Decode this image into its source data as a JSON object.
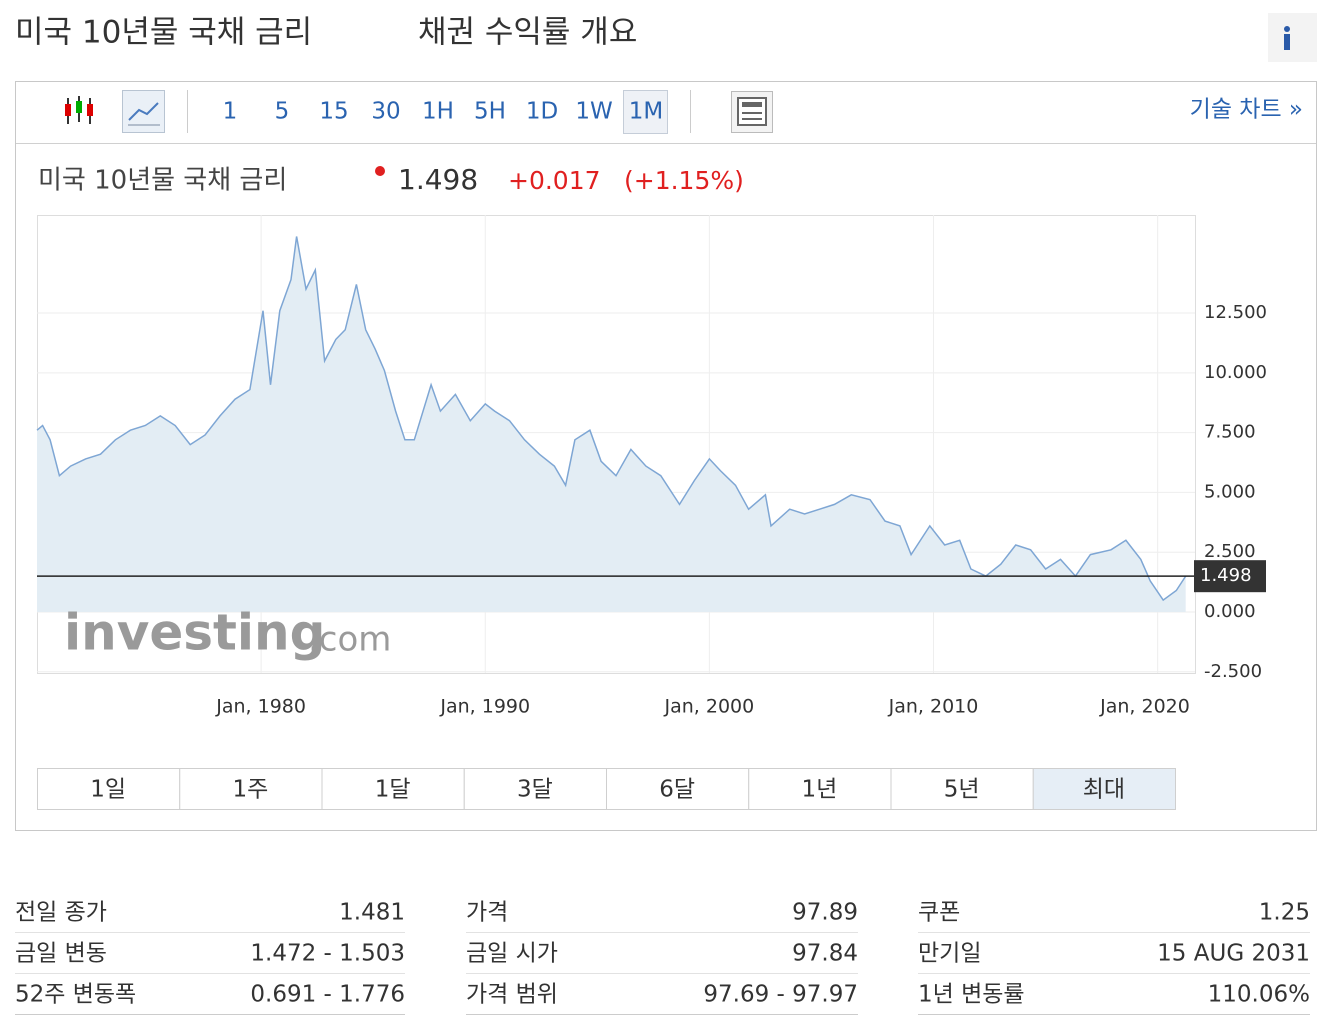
{
  "header": {
    "title": "미국 10년물 국채 금리",
    "subtitle": "채권 수익률 개요"
  },
  "toolbar": {
    "intervals": [
      {
        "label": "1"
      },
      {
        "label": "5"
      },
      {
        "label": "15"
      },
      {
        "label": "30"
      },
      {
        "label": "1H"
      },
      {
        "label": "5H"
      },
      {
        "label": "1D"
      },
      {
        "label": "1W"
      },
      {
        "label": "1M",
        "selected": true
      }
    ],
    "technical_link": "기술 차트 »"
  },
  "quote": {
    "name": "미국 10년물 국채 금리",
    "price": 1.498,
    "change": "+0.017",
    "change_percent": "(+1.15%)"
  },
  "watermark": {
    "brand": "investing",
    "suffix": ".com"
  },
  "chart_data": {
    "type": "line",
    "color": "#7ea6d4",
    "fill": "#e3edf4",
    "grid": true,
    "x": [
      "1970-01",
      "1970-04",
      "1970-08",
      "1971-01",
      "1971-07",
      "1972-03",
      "1972-11",
      "1973-07",
      "1974-03",
      "1974-11",
      "1975-07",
      "1976-03",
      "1976-11",
      "1977-07",
      "1978-03",
      "1978-11",
      "1979-07",
      "1980-02",
      "1980-06",
      "1980-11",
      "1981-05",
      "1981-08",
      "1982-01",
      "1982-06",
      "1982-11",
      "1983-05",
      "1983-10",
      "1984-04",
      "1984-09",
      "1985-02",
      "1985-07",
      "1986-01",
      "1986-06",
      "1986-11",
      "1987-08",
      "1988-01",
      "1988-09",
      "1989-05",
      "1990-01",
      "1990-06",
      "1991-02",
      "1991-10",
      "1992-06",
      "1993-02",
      "1993-08",
      "1994-01",
      "1994-09",
      "1995-03",
      "1995-11",
      "1996-07",
      "1997-03",
      "1997-11",
      "1998-09",
      "1999-05",
      "2000-01",
      "2000-07",
      "2001-03",
      "2001-10",
      "2002-07",
      "2002-10",
      "2003-08",
      "2004-04",
      "2004-12",
      "2005-08",
      "2006-05",
      "2007-03",
      "2007-11",
      "2008-07",
      "2009-01",
      "2009-11",
      "2010-07",
      "2011-03",
      "2011-09",
      "2012-05",
      "2013-01",
      "2013-09",
      "2014-05",
      "2015-01",
      "2015-09",
      "2016-05",
      "2017-01",
      "2017-12",
      "2018-08",
      "2019-04",
      "2019-09",
      "2020-04",
      "2020-11",
      "2021-04"
    ],
    "values": [
      7.6,
      7.8,
      7.2,
      5.7,
      6.1,
      6.4,
      6.6,
      7.2,
      7.6,
      7.8,
      8.2,
      7.8,
      7.0,
      7.4,
      8.2,
      8.9,
      9.3,
      12.6,
      9.5,
      12.6,
      13.9,
      15.7,
      13.5,
      14.3,
      10.5,
      11.4,
      11.8,
      13.7,
      11.8,
      11.0,
      10.1,
      8.4,
      7.2,
      7.2,
      9.5,
      8.4,
      9.1,
      8.0,
      8.7,
      8.4,
      8.0,
      7.2,
      6.6,
      6.1,
      5.3,
      7.2,
      7.6,
      6.3,
      5.7,
      6.8,
      6.1,
      5.7,
      4.5,
      5.5,
      6.4,
      5.9,
      5.3,
      4.3,
      4.9,
      3.6,
      4.3,
      4.1,
      4.3,
      4.5,
      4.9,
      4.7,
      3.8,
      3.6,
      2.4,
      3.6,
      2.8,
      3.0,
      1.8,
      1.5,
      2.0,
      2.8,
      2.6,
      1.8,
      2.2,
      1.5,
      2.4,
      2.6,
      3.0,
      2.2,
      1.3,
      0.5,
      0.9,
      1.5
    ],
    "xlim": [
      "1970-01",
      "2021-09"
    ],
    "xticks": [
      {
        "value": "1980-01",
        "label": "Jan, 1980"
      },
      {
        "value": "1990-01",
        "label": "Jan, 1990"
      },
      {
        "value": "2000-01",
        "label": "Jan, 2000"
      },
      {
        "value": "2010-01",
        "label": "Jan, 2010"
      },
      {
        "value": "2020-01",
        "label": "Jan, 2020"
      }
    ],
    "ylim": [
      -2.55,
      16.6
    ],
    "yticks": [
      {
        "value": -2.5,
        "label": "-2.500"
      },
      {
        "value": 0,
        "label": "0.000"
      },
      {
        "value": 2.5,
        "label": "2.500"
      },
      {
        "value": 5,
        "label": "5.000"
      },
      {
        "value": 7.5,
        "label": "7.500"
      },
      {
        "value": 10,
        "label": "10.000"
      },
      {
        "value": 12.5,
        "label": "12.500"
      }
    ]
  },
  "range_buttons": [
    {
      "label": "1일"
    },
    {
      "label": "1주"
    },
    {
      "label": "1달"
    },
    {
      "label": "3달"
    },
    {
      "label": "6달"
    },
    {
      "label": "1년"
    },
    {
      "label": "5년"
    },
    {
      "label": "최대",
      "selected": true
    }
  ],
  "stats": [
    [
      [
        "전일 종가",
        "1.481"
      ],
      [
        "금일 변동",
        "1.472 - 1.503"
      ],
      [
        "52주 변동폭",
        "0.691 - 1.776"
      ]
    ],
    [
      [
        "가격",
        "97.89"
      ],
      [
        "금일 시가",
        "97.84"
      ],
      [
        "가격 범위",
        "97.69 - 97.97"
      ]
    ],
    [
      [
        "쿠폰",
        "1.25"
      ],
      [
        "만기일",
        "15 AUG 2031"
      ],
      [
        "1년 변동률",
        "110.06%"
      ]
    ]
  ]
}
